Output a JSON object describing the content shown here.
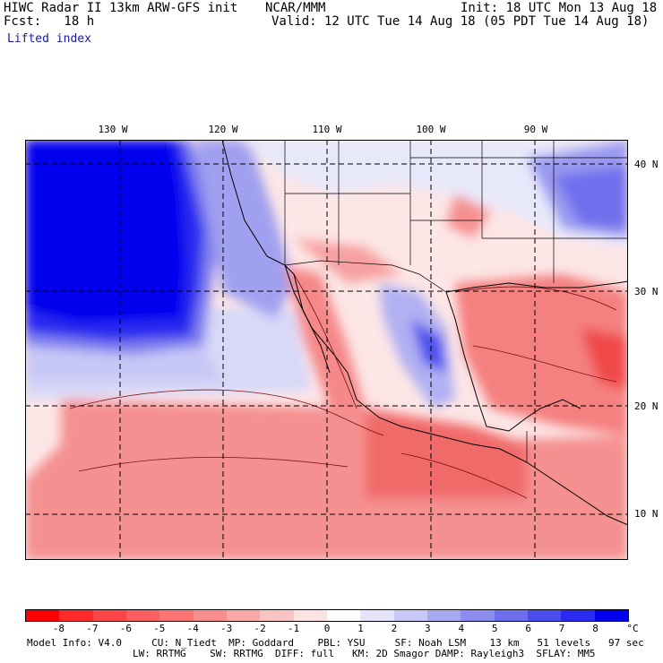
{
  "header": {
    "left": "HIWC Radar II 13km ARW-GFS init",
    "center": "NCAR/MMM",
    "init": "Init: 18 UTC Mon 13 Aug 18",
    "fcst": "Fcst:   18 h",
    "valid": "Valid: 12 UTC Tue 14 Aug 18 (05 PDT Tue 14 Aug 18)",
    "field": "Lifted index"
  },
  "map": {
    "lon_labels": [
      "130 W",
      "120 W",
      "110 W",
      "100 W",
      "90 W"
    ],
    "lat_labels": [
      "40 N",
      "30 N",
      "20 N",
      "10 N"
    ],
    "features": [
      "Pacific Ocean",
      "western United States",
      "Mexico",
      "Gulf of Mexico",
      "Central America"
    ]
  },
  "colorbar": {
    "labels": [
      "-8",
      "-7",
      "-6",
      "-5",
      "-4",
      "-3",
      "-2",
      "-1",
      "0",
      "1",
      "2",
      "3",
      "4",
      "5",
      "6",
      "7",
      "8"
    ],
    "unit": "°C",
    "colors": [
      "#ff0000",
      "#ff2a2a",
      "#ff4646",
      "#fc5f5f",
      "#fb7575",
      "#f98e8e",
      "#f8a8a8",
      "#fac4c4",
      "#fde2e2",
      "#ffffff",
      "#e4e4fb",
      "#c8c8f6",
      "#a9a9f1",
      "#8c8cee",
      "#6d6ded",
      "#4c4cee",
      "#2a2af0",
      "#0000ee"
    ]
  },
  "footer": {
    "line1": "Model Info: V4.0     CU: N_Tiedt  MP: Goddard    PBL: YSU     SF: Noah LSM    13 km   51 levels   97 sec",
    "line2": "LW: RRTMG    SW: RRTMG  DIFF: full   KM: 2D Smagor DAMP: Rayleigh3  SFLAY: MM5"
  }
}
